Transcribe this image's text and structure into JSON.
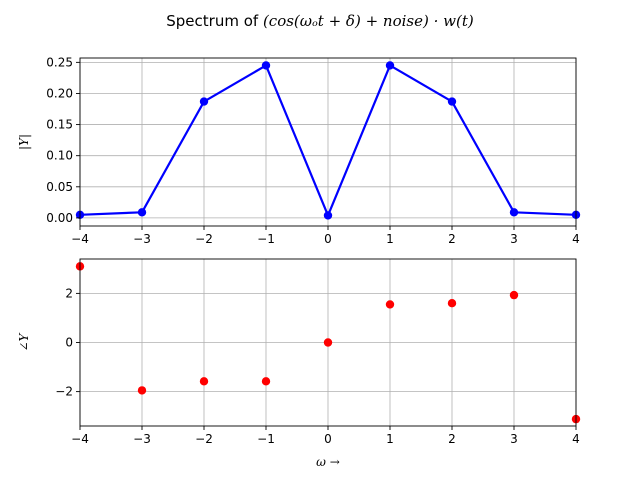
{
  "title": {
    "prefix": "Spectrum of ",
    "math": "(cos(ωₒt + δ) + noise) · w(t)"
  },
  "chart_data": [
    {
      "type": "line",
      "ylabel": "|Y|",
      "xlabel": "",
      "x": [
        -4,
        -3,
        -2,
        -1,
        0,
        1,
        2,
        3,
        4
      ],
      "series": [
        {
          "values": [
            0.005,
            0.009,
            0.187,
            0.245,
            0.004,
            0.245,
            0.187,
            0.009,
            0.005
          ],
          "color": "#0000ff",
          "marker": "circle"
        }
      ],
      "xlim": [
        -4,
        4
      ],
      "ylim": [
        -0.013,
        0.257
      ],
      "xticks": [
        "-4",
        "-3",
        "-2",
        "-1",
        "0",
        "1",
        "2",
        "3",
        "4"
      ],
      "yticks": [
        "0.00",
        "0.05",
        "0.10",
        "0.15",
        "0.20",
        "0.25"
      ],
      "grid": true
    },
    {
      "type": "scatter",
      "ylabel": "∠Y",
      "xlabel": "ω →",
      "x": [
        -4,
        -3,
        -2,
        -1,
        0,
        1,
        2,
        3,
        4
      ],
      "series": [
        {
          "values": [
            3.1,
            -1.95,
            -1.58,
            -1.58,
            0.0,
            1.55,
            1.6,
            1.93,
            -3.12
          ],
          "color": "#ff0000",
          "marker": "circle"
        }
      ],
      "xlim": [
        -4,
        4
      ],
      "ylim": [
        -3.4,
        3.4
      ],
      "xticks": [
        "-4",
        "-3",
        "-2",
        "-1",
        "0",
        "1",
        "2",
        "3",
        "4"
      ],
      "yticks": [
        "-2",
        "0",
        "2"
      ],
      "grid": true
    }
  ]
}
